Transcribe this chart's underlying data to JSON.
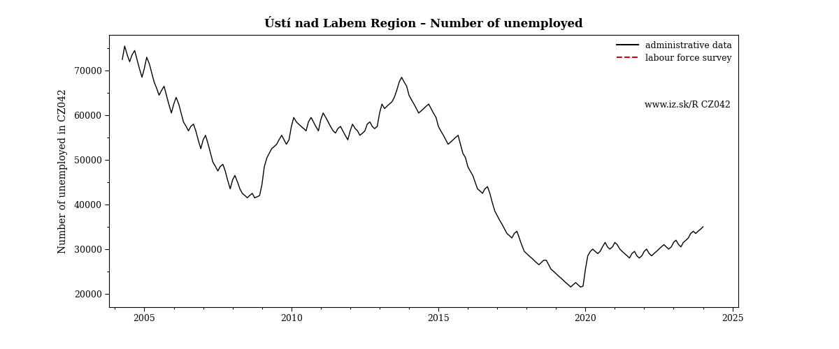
{
  "title": "Ústí nad Labem Region – Number of unemployed",
  "ylabel": "Number of unemployed in CZ042",
  "xlim": [
    2003.8,
    2025.2
  ],
  "ylim": [
    17000,
    78000
  ],
  "yticks": [
    20000,
    30000,
    40000,
    50000,
    60000,
    70000
  ],
  "ytick_labels": [
    "20000",
    "30000",
    "40000",
    "50000",
    "60000",
    "70000"
  ],
  "xticks": [
    2005,
    2010,
    2015,
    2020,
    2025
  ],
  "legend_entries": [
    "administrative data",
    "labour force survey",
    "www.iz.sk/R CZ042"
  ],
  "admin_color": "#000000",
  "lfs_color": "#cc0000",
  "background_color": "#ffffff",
  "admin_data": [
    [
      2004.25,
      72500
    ],
    [
      2004.33,
      75500
    ],
    [
      2004.42,
      73500
    ],
    [
      2004.5,
      72000
    ],
    [
      2004.58,
      73500
    ],
    [
      2004.67,
      74500
    ],
    [
      2004.75,
      72500
    ],
    [
      2004.83,
      70500
    ],
    [
      2004.92,
      68500
    ],
    [
      2005.0,
      70500
    ],
    [
      2005.08,
      73000
    ],
    [
      2005.17,
      71500
    ],
    [
      2005.25,
      69500
    ],
    [
      2005.33,
      67500
    ],
    [
      2005.42,
      66000
    ],
    [
      2005.5,
      64500
    ],
    [
      2005.58,
      65500
    ],
    [
      2005.67,
      66500
    ],
    [
      2005.75,
      64500
    ],
    [
      2005.83,
      62500
    ],
    [
      2005.92,
      60500
    ],
    [
      2006.0,
      62500
    ],
    [
      2006.08,
      64000
    ],
    [
      2006.17,
      62500
    ],
    [
      2006.25,
      60500
    ],
    [
      2006.33,
      58500
    ],
    [
      2006.42,
      57500
    ],
    [
      2006.5,
      56500
    ],
    [
      2006.58,
      57500
    ],
    [
      2006.67,
      58000
    ],
    [
      2006.75,
      56500
    ],
    [
      2006.83,
      54500
    ],
    [
      2006.92,
      52500
    ],
    [
      2007.0,
      54500
    ],
    [
      2007.08,
      55500
    ],
    [
      2007.17,
      53500
    ],
    [
      2007.25,
      51500
    ],
    [
      2007.33,
      49500
    ],
    [
      2007.42,
      48500
    ],
    [
      2007.5,
      47500
    ],
    [
      2007.58,
      48500
    ],
    [
      2007.67,
      49000
    ],
    [
      2007.75,
      47500
    ],
    [
      2007.83,
      45500
    ],
    [
      2007.92,
      43500
    ],
    [
      2008.0,
      45500
    ],
    [
      2008.08,
      46500
    ],
    [
      2008.17,
      45000
    ],
    [
      2008.25,
      43500
    ],
    [
      2008.33,
      42500
    ],
    [
      2008.42,
      42000
    ],
    [
      2008.5,
      41500
    ],
    [
      2008.58,
      42000
    ],
    [
      2008.67,
      42500
    ],
    [
      2008.75,
      41500
    ],
    [
      2008.83,
      41700
    ],
    [
      2008.92,
      42000
    ],
    [
      2009.0,
      44500
    ],
    [
      2009.08,
      48500
    ],
    [
      2009.17,
      50500
    ],
    [
      2009.25,
      51500
    ],
    [
      2009.33,
      52500
    ],
    [
      2009.42,
      53000
    ],
    [
      2009.5,
      53500
    ],
    [
      2009.58,
      54500
    ],
    [
      2009.67,
      55500
    ],
    [
      2009.75,
      54500
    ],
    [
      2009.83,
      53500
    ],
    [
      2009.92,
      54500
    ],
    [
      2010.0,
      57500
    ],
    [
      2010.08,
      59500
    ],
    [
      2010.17,
      58500
    ],
    [
      2010.25,
      58000
    ],
    [
      2010.33,
      57500
    ],
    [
      2010.42,
      57000
    ],
    [
      2010.5,
      56500
    ],
    [
      2010.58,
      58500
    ],
    [
      2010.67,
      59500
    ],
    [
      2010.75,
      58500
    ],
    [
      2010.83,
      57500
    ],
    [
      2010.92,
      56500
    ],
    [
      2011.0,
      59000
    ],
    [
      2011.08,
      60500
    ],
    [
      2011.17,
      59500
    ],
    [
      2011.25,
      58500
    ],
    [
      2011.33,
      57500
    ],
    [
      2011.42,
      56500
    ],
    [
      2011.5,
      56000
    ],
    [
      2011.58,
      57000
    ],
    [
      2011.67,
      57500
    ],
    [
      2011.75,
      56500
    ],
    [
      2011.83,
      55500
    ],
    [
      2011.92,
      54500
    ],
    [
      2012.0,
      56500
    ],
    [
      2012.08,
      58000
    ],
    [
      2012.17,
      57000
    ],
    [
      2012.25,
      56500
    ],
    [
      2012.33,
      55500
    ],
    [
      2012.42,
      56000
    ],
    [
      2012.5,
      56500
    ],
    [
      2012.58,
      58000
    ],
    [
      2012.67,
      58500
    ],
    [
      2012.75,
      57500
    ],
    [
      2012.83,
      57000
    ],
    [
      2012.92,
      57500
    ],
    [
      2013.0,
      60500
    ],
    [
      2013.08,
      62500
    ],
    [
      2013.17,
      61500
    ],
    [
      2013.25,
      62000
    ],
    [
      2013.33,
      62500
    ],
    [
      2013.42,
      63000
    ],
    [
      2013.5,
      64000
    ],
    [
      2013.58,
      65500
    ],
    [
      2013.67,
      67500
    ],
    [
      2013.75,
      68500
    ],
    [
      2013.83,
      67500
    ],
    [
      2013.92,
      66500
    ],
    [
      2014.0,
      64500
    ],
    [
      2014.08,
      63500
    ],
    [
      2014.17,
      62500
    ],
    [
      2014.25,
      61500
    ],
    [
      2014.33,
      60500
    ],
    [
      2014.42,
      61000
    ],
    [
      2014.5,
      61500
    ],
    [
      2014.58,
      62000
    ],
    [
      2014.67,
      62500
    ],
    [
      2014.75,
      61500
    ],
    [
      2014.83,
      60500
    ],
    [
      2014.92,
      59500
    ],
    [
      2015.0,
      57500
    ],
    [
      2015.08,
      56500
    ],
    [
      2015.17,
      55500
    ],
    [
      2015.25,
      54500
    ],
    [
      2015.33,
      53500
    ],
    [
      2015.42,
      54000
    ],
    [
      2015.5,
      54500
    ],
    [
      2015.58,
      55000
    ],
    [
      2015.67,
      55500
    ],
    [
      2015.75,
      53500
    ],
    [
      2015.83,
      51500
    ],
    [
      2015.92,
      50500
    ],
    [
      2016.0,
      48500
    ],
    [
      2016.08,
      47500
    ],
    [
      2016.17,
      46500
    ],
    [
      2016.25,
      45000
    ],
    [
      2016.33,
      43500
    ],
    [
      2016.42,
      43000
    ],
    [
      2016.5,
      42500
    ],
    [
      2016.58,
      43500
    ],
    [
      2016.67,
      44000
    ],
    [
      2016.75,
      42500
    ],
    [
      2016.83,
      40500
    ],
    [
      2016.92,
      38500
    ],
    [
      2017.0,
      37500
    ],
    [
      2017.08,
      36500
    ],
    [
      2017.17,
      35500
    ],
    [
      2017.25,
      34500
    ],
    [
      2017.33,
      33500
    ],
    [
      2017.42,
      33000
    ],
    [
      2017.5,
      32500
    ],
    [
      2017.58,
      33500
    ],
    [
      2017.67,
      34000
    ],
    [
      2017.75,
      32500
    ],
    [
      2017.83,
      31000
    ],
    [
      2017.92,
      29500
    ],
    [
      2018.0,
      29000
    ],
    [
      2018.08,
      28500
    ],
    [
      2018.17,
      28000
    ],
    [
      2018.25,
      27500
    ],
    [
      2018.33,
      27000
    ],
    [
      2018.42,
      26500
    ],
    [
      2018.5,
      27000
    ],
    [
      2018.58,
      27500
    ],
    [
      2018.67,
      27500
    ],
    [
      2018.75,
      26500
    ],
    [
      2018.83,
      25500
    ],
    [
      2018.92,
      25000
    ],
    [
      2019.0,
      24500
    ],
    [
      2019.08,
      24000
    ],
    [
      2019.17,
      23500
    ],
    [
      2019.25,
      23000
    ],
    [
      2019.33,
      22500
    ],
    [
      2019.42,
      22000
    ],
    [
      2019.5,
      21500
    ],
    [
      2019.58,
      22000
    ],
    [
      2019.67,
      22500
    ],
    [
      2019.75,
      22000
    ],
    [
      2019.83,
      21500
    ],
    [
      2019.92,
      21700
    ],
    [
      2020.0,
      25500
    ],
    [
      2020.08,
      28500
    ],
    [
      2020.17,
      29500
    ],
    [
      2020.25,
      30000
    ],
    [
      2020.33,
      29500
    ],
    [
      2020.42,
      29000
    ],
    [
      2020.5,
      29500
    ],
    [
      2020.58,
      30500
    ],
    [
      2020.67,
      31500
    ],
    [
      2020.75,
      30500
    ],
    [
      2020.83,
      30000
    ],
    [
      2020.92,
      30500
    ],
    [
      2021.0,
      31500
    ],
    [
      2021.08,
      31000
    ],
    [
      2021.17,
      30000
    ],
    [
      2021.25,
      29500
    ],
    [
      2021.33,
      29000
    ],
    [
      2021.42,
      28500
    ],
    [
      2021.5,
      28000
    ],
    [
      2021.58,
      29000
    ],
    [
      2021.67,
      29500
    ],
    [
      2021.75,
      28500
    ],
    [
      2021.83,
      28000
    ],
    [
      2021.92,
      28500
    ],
    [
      2022.0,
      29500
    ],
    [
      2022.08,
      30000
    ],
    [
      2022.17,
      29000
    ],
    [
      2022.25,
      28500
    ],
    [
      2022.33,
      29000
    ],
    [
      2022.42,
      29500
    ],
    [
      2022.5,
      30000
    ],
    [
      2022.58,
      30500
    ],
    [
      2022.67,
      31000
    ],
    [
      2022.75,
      30500
    ],
    [
      2022.83,
      30000
    ],
    [
      2022.92,
      30500
    ],
    [
      2023.0,
      31500
    ],
    [
      2023.08,
      32000
    ],
    [
      2023.17,
      31000
    ],
    [
      2023.25,
      30500
    ],
    [
      2023.33,
      31500
    ],
    [
      2023.42,
      32000
    ],
    [
      2023.5,
      32500
    ],
    [
      2023.58,
      33500
    ],
    [
      2023.67,
      34000
    ],
    [
      2023.75,
      33500
    ],
    [
      2023.83,
      34000
    ],
    [
      2023.92,
      34500
    ],
    [
      2024.0,
      35000
    ]
  ]
}
